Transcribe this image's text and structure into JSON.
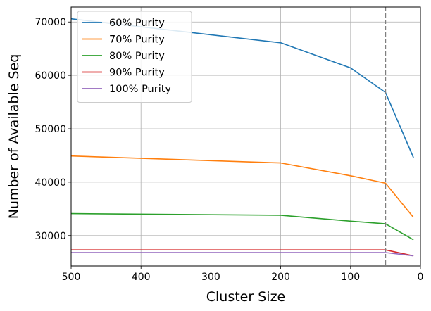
{
  "chart_data": {
    "type": "line",
    "xlabel": "Cluster Size",
    "ylabel": "Number of Available Seq",
    "x": [
      500,
      200,
      100,
      50,
      10
    ],
    "xlim": [
      500,
      0
    ],
    "ylim": [
      24300,
      72800
    ],
    "xticks": [
      500,
      400,
      300,
      200,
      100,
      0
    ],
    "yticks": [
      30000,
      40000,
      50000,
      60000,
      70000
    ],
    "grid": true,
    "legend_position": "top-left",
    "reference_line": {
      "x": 50,
      "style": "dashed",
      "color": "#7f7f7f"
    },
    "series": [
      {
        "name": "60% Purity",
        "color": "#1f77b4",
        "values": [
          70600,
          66100,
          61400,
          56800,
          44600
        ]
      },
      {
        "name": "70% Purity",
        "color": "#ff7f0e",
        "values": [
          44900,
          43600,
          41200,
          39800,
          33400
        ]
      },
      {
        "name": "80% Purity",
        "color": "#2ca02c",
        "values": [
          34100,
          33800,
          32700,
          32200,
          29200
        ]
      },
      {
        "name": "90% Purity",
        "color": "#d62728",
        "values": [
          27300,
          27300,
          27300,
          27300,
          26200
        ]
      },
      {
        "name": "100% Purity",
        "color": "#9467bd",
        "values": [
          26800,
          26800,
          26800,
          26800,
          26200
        ]
      }
    ]
  }
}
